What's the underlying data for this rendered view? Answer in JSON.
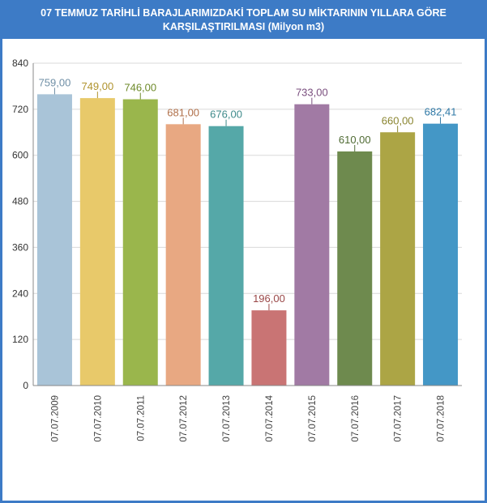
{
  "title": {
    "line1": "07 TEMMUZ TARİHLİ BARAJLARIMIZDAKİ TOPLAM SU MİKTARININ YILLARA GÖRE",
    "line2": "KARŞILAŞTIRILMASI (Milyon m3)"
  },
  "colors": {
    "frame": "#3d7bc6",
    "grid": "#d9d9d9",
    "axis": "#888888"
  },
  "chart_data": {
    "type": "bar",
    "title": "07 TEMMUZ TARİHLİ BARAJLARIMIZDAKİ TOPLAM SU MİKTARININ YILLARA GÖRE KARŞILAŞTIRILMASI (Milyon m3)",
    "xlabel": "",
    "ylabel": "",
    "ylim": [
      0,
      840
    ],
    "yticks": [
      0,
      120,
      240,
      360,
      480,
      600,
      720,
      840
    ],
    "grid": true,
    "legend": "none",
    "categories": [
      "07.07.2009",
      "07.07.2010",
      "07.07.2011",
      "07.07.2012",
      "07.07.2013",
      "07.07.2014",
      "07.07.2015",
      "07.07.2016",
      "07.07.2017",
      "07.07.2018"
    ],
    "values": [
      759,
      749,
      746,
      681,
      676,
      196,
      733,
      610,
      660,
      682.41
    ],
    "value_labels": [
      "759,00",
      "749,00",
      "746,00",
      "681,00",
      "676,00",
      "196,00",
      "733,00",
      "610,00",
      "660,00",
      "682,41"
    ],
    "bar_colors": [
      "#a9c4d8",
      "#e8c96a",
      "#9ab64c",
      "#e8a882",
      "#55a8a8",
      "#c97474",
      "#a17aa4",
      "#6e8a4e",
      "#aca545",
      "#4497c6"
    ],
    "label_colors": [
      "#6f8fa6",
      "#b0932e",
      "#6e8a2a",
      "#b0704a",
      "#3e8a8a",
      "#9a4848",
      "#7a4e7e",
      "#4e6a32",
      "#8a8530",
      "#2e78a6"
    ]
  }
}
